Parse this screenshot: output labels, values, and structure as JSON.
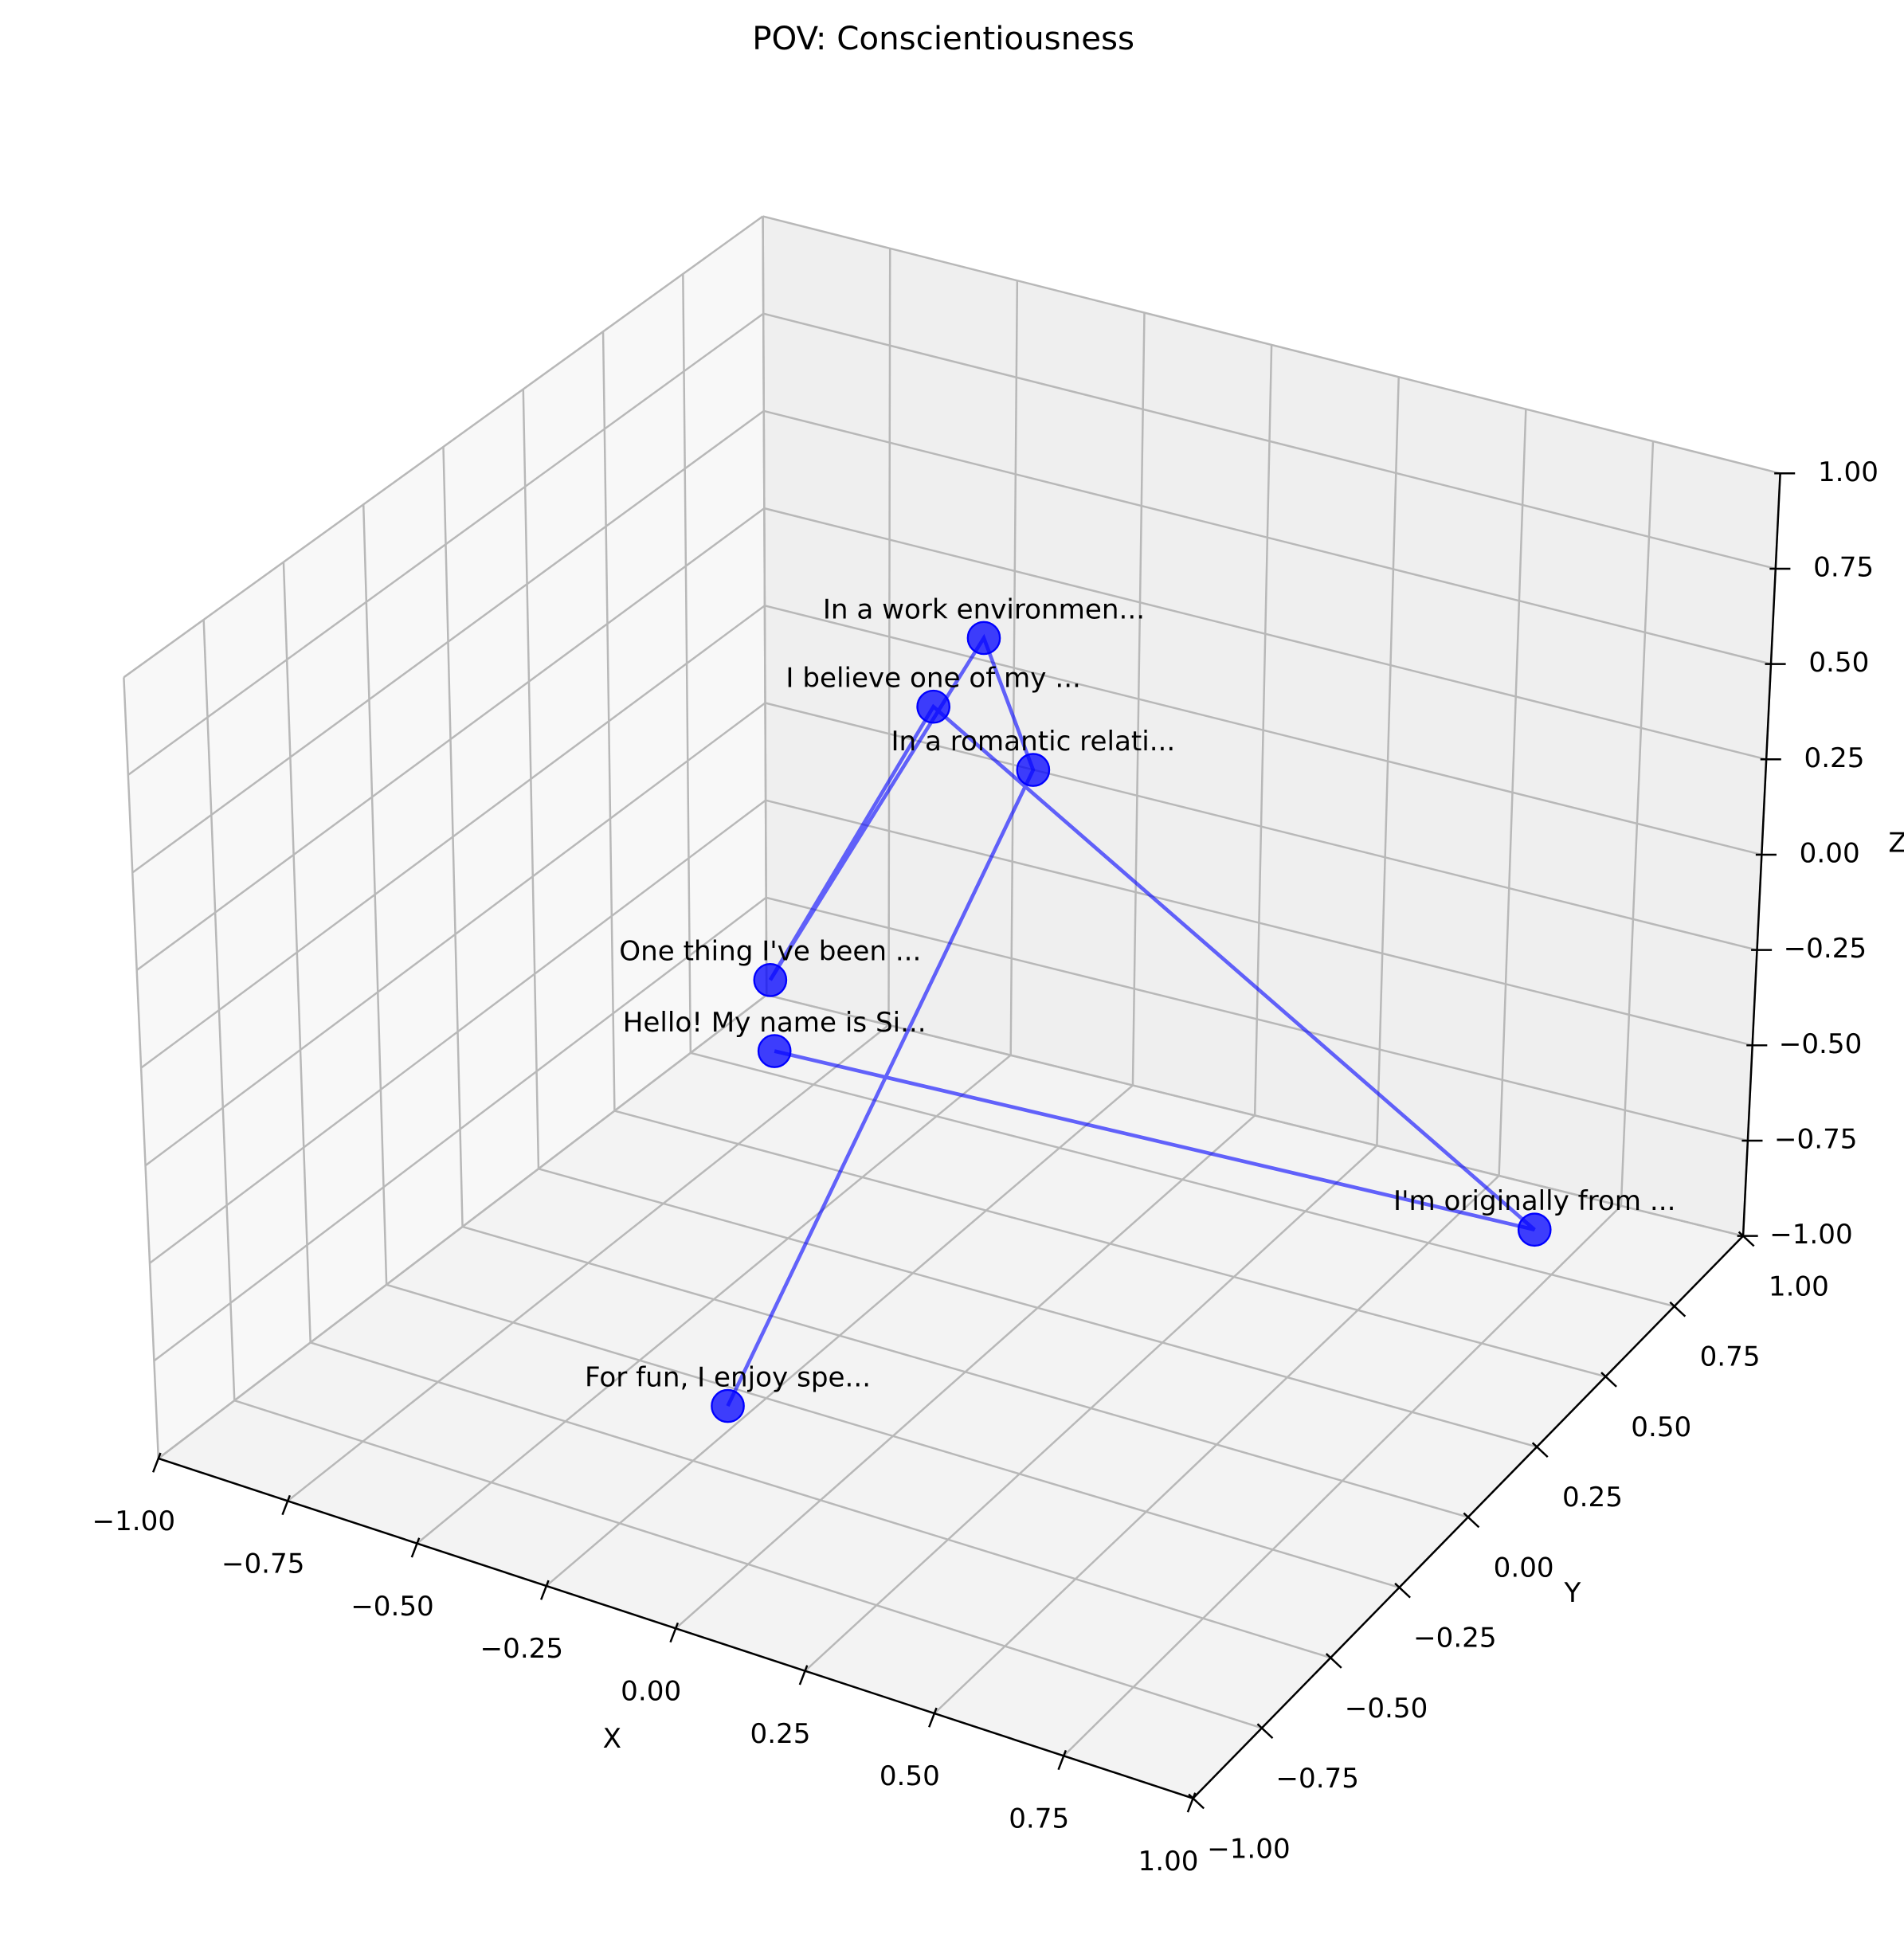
{
  "chart_data": {
    "type": "scatter3d",
    "title": "POV: Conscientiousness",
    "xlabel": "X",
    "ylabel": "Y",
    "zlabel": "Z",
    "color": "#0000ff",
    "labels": [
      "Hello! My name is Si...",
      "I'm originally from ...",
      "I believe one of my ...",
      "One thing I've been ...",
      "In a work environmen...",
      "In a romantic relati...",
      "For fun, I enjoy spe..."
    ],
    "x": [
      -0.86,
      0.74,
      -0.6,
      -0.93,
      -0.5,
      -0.28,
      -0.18
    ],
    "y": [
      0.8,
      0.7,
      0.9,
      0.9,
      0.9,
      0.7,
      -0.5
    ],
    "z": [
      -0.98,
      -0.85,
      -0.07,
      -0.88,
      0.14,
      0.0,
      -0.83
    ],
    "xlim": [
      -1,
      1
    ],
    "ylim": [
      -1,
      1
    ],
    "zlim": [
      -1,
      1
    ],
    "xticks": [
      {
        "value": -1,
        "label": "−1.00"
      },
      {
        "value": -0.75,
        "label": "−0.75"
      },
      {
        "value": -0.5,
        "label": "−0.50"
      },
      {
        "value": -0.25,
        "label": "−0.25"
      },
      {
        "value": 0,
        "label": "0.00"
      },
      {
        "value": 0.25,
        "label": "0.25"
      },
      {
        "value": 0.5,
        "label": "0.50"
      },
      {
        "value": 0.75,
        "label": "0.75"
      },
      {
        "value": 1,
        "label": "1.00"
      }
    ],
    "yticks": [
      {
        "value": -1,
        "label": "−1.00"
      },
      {
        "value": -0.75,
        "label": "−0.75"
      },
      {
        "value": -0.5,
        "label": "−0.50"
      },
      {
        "value": -0.25,
        "label": "−0.25"
      },
      {
        "value": 0,
        "label": "0.00"
      },
      {
        "value": 0.25,
        "label": "0.25"
      },
      {
        "value": 0.5,
        "label": "0.50"
      },
      {
        "value": 0.75,
        "label": "0.75"
      },
      {
        "value": 1,
        "label": "1.00"
      }
    ],
    "zticks": [
      {
        "value": -1,
        "label": "−1.00"
      },
      {
        "value": -0.75,
        "label": "−0.75"
      },
      {
        "value": -0.5,
        "label": "−0.50"
      },
      {
        "value": -0.25,
        "label": "−0.25"
      },
      {
        "value": 0,
        "label": "0.00"
      },
      {
        "value": 0.25,
        "label": "0.25"
      },
      {
        "value": 0.5,
        "label": "0.50"
      },
      {
        "value": 0.75,
        "label": "0.75"
      },
      {
        "value": 1,
        "label": "1.00"
      }
    ],
    "grid": true
  }
}
